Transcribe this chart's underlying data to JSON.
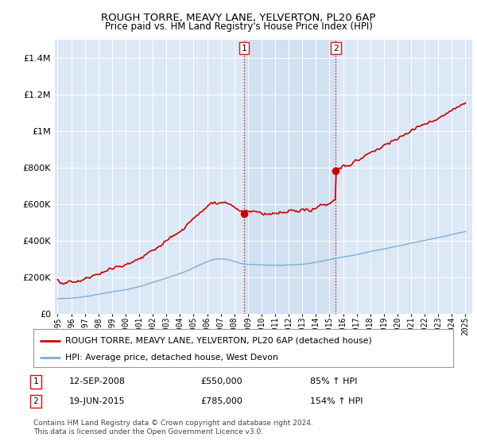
{
  "title": "ROUGH TORRE, MEAVY LANE, YELVERTON, PL20 6AP",
  "subtitle": "Price paid vs. HM Land Registry's House Price Index (HPI)",
  "legend_line1": "ROUGH TORRE, MEAVY LANE, YELVERTON, PL20 6AP (detached house)",
  "legend_line2": "HPI: Average price, detached house, West Devon",
  "footnote1": "Contains HM Land Registry data © Crown copyright and database right 2024.",
  "footnote2": "This data is licensed under the Open Government Licence v3.0.",
  "sale1_label": "1",
  "sale1_date": "12-SEP-2008",
  "sale1_price": "£550,000",
  "sale1_hpi": "85% ↑ HPI",
  "sale2_label": "2",
  "sale2_date": "19-JUN-2015",
  "sale2_price": "£785,000",
  "sale2_hpi": "154% ↑ HPI",
  "property_color": "#cc0000",
  "hpi_color": "#7bafd4",
  "background_color": "#ffffff",
  "plot_bg_color": "#dce8f5",
  "ylim": [
    0,
    1500000
  ],
  "yticks": [
    0,
    200000,
    400000,
    600000,
    800000,
    1000000,
    1200000,
    1400000
  ],
  "year_start": 1995,
  "year_end": 2025,
  "sale1_year": 2008.7,
  "sale2_year": 2015.47,
  "vline_color": "#cc2222"
}
